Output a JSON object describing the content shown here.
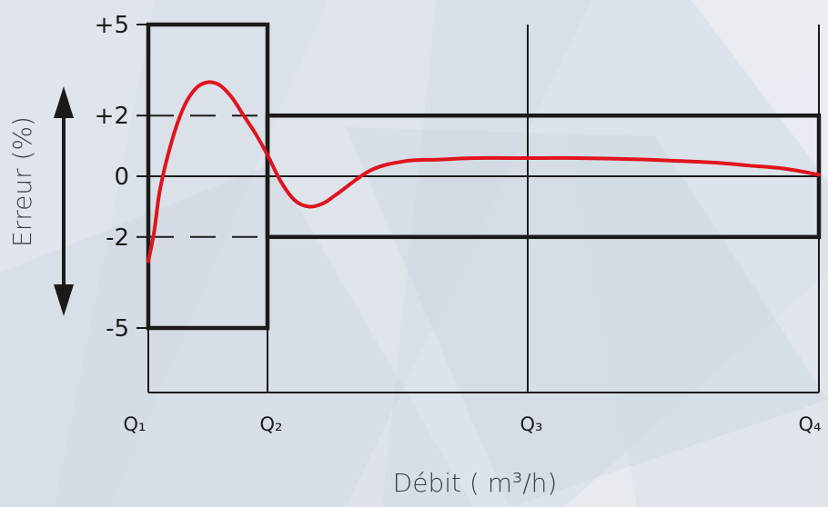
{
  "colors": {
    "curve": "#e0141e",
    "frame": "#1a1a1a",
    "background": "#e7ebf0"
  },
  "chart_data": {
    "type": "line",
    "xlabel": "Débit ( m³/h)",
    "ylabel": "Erreur  (%)",
    "x_ticks": [
      "Q₁",
      "Q₂",
      "Q₃",
      "Q₄"
    ],
    "y_ticks": [
      "+5",
      "+2",
      "0",
      "-2",
      "-5"
    ],
    "ylim": [
      -5,
      5
    ],
    "tolerance": {
      "lower_range": {
        "from": "Q₁",
        "to": "Q₂",
        "limits": [
          -5,
          5
        ]
      },
      "upper_range": {
        "from": "Q₂",
        "to": "Q₄",
        "limits": [
          -2,
          2
        ]
      }
    },
    "series": [
      {
        "x": [
          0,
          0.05,
          0.1,
          0.2,
          0.3,
          0.4,
          0.5,
          0.6,
          0.7,
          0.8,
          0.9,
          1.0,
          1.2,
          1.4,
          1.6,
          1.8,
          2.0,
          2.5,
          3.0,
          3.5,
          4.0,
          4.5,
          5.0,
          5.5,
          6.0,
          6.5,
          7.0,
          7.5,
          8.0,
          8.5,
          9.0
        ],
        "y": [
          -2.8,
          -1.8,
          -0.4,
          1.2,
          2.3,
          2.9,
          3.1,
          3.0,
          2.6,
          2.0,
          1.4,
          0.7,
          -0.2,
          -0.8,
          -1.0,
          -0.9,
          -0.6,
          0.2,
          0.5,
          0.55,
          0.6,
          0.6,
          0.6,
          0.6,
          0.58,
          0.55,
          0.5,
          0.45,
          0.35,
          0.25,
          0.05
        ]
      }
    ]
  }
}
